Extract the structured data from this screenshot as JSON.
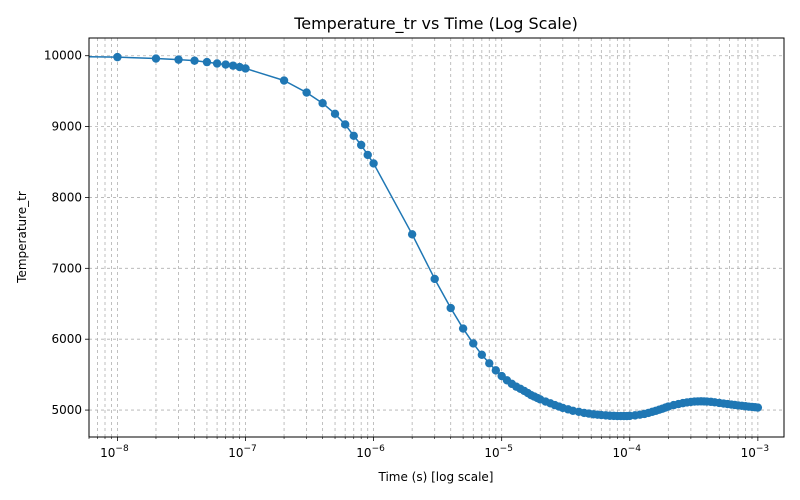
{
  "chart_data": {
    "type": "line",
    "title": "Temperature_tr vs Time (Log Scale)",
    "xlabel": "Time (s) [log scale]",
    "ylabel": "Temperature_tr",
    "x_scale": "log",
    "xlim": [
      6e-09,
      0.0016
    ],
    "ylim": [
      4620,
      10250
    ],
    "x_ticks": [
      {
        "value": 1e-08,
        "base": "10",
        "exp": "−8"
      },
      {
        "value": 1e-07,
        "base": "10",
        "exp": "−7"
      },
      {
        "value": 1e-06,
        "base": "10",
        "exp": "−6"
      },
      {
        "value": 1e-05,
        "base": "10",
        "exp": "−5"
      },
      {
        "value": 0.0001,
        "base": "10",
        "exp": "−4"
      },
      {
        "value": 0.001,
        "base": "10",
        "exp": "−3"
      }
    ],
    "y_ticks": [
      {
        "value": 5000,
        "label": "5000"
      },
      {
        "value": 6000,
        "label": "6000"
      },
      {
        "value": 7000,
        "label": "7000"
      },
      {
        "value": 8000,
        "label": "8000"
      },
      {
        "value": 9000,
        "label": "9000"
      },
      {
        "value": 10000,
        "label": "10000"
      }
    ],
    "grid": true,
    "grid_minor_x": true,
    "color": "#1f77b4",
    "line_start": {
      "x": 6e-09,
      "y": 9985
    },
    "series": [
      {
        "marker": "circle",
        "x": [
          1e-08,
          2e-08,
          3e-08,
          4e-08,
          5e-08,
          6e-08,
          7e-08,
          8e-08,
          9e-08,
          1e-07,
          2e-07,
          3e-07,
          4e-07,
          5e-07,
          6e-07,
          7e-07,
          8e-07,
          9e-07,
          1e-06,
          2e-06,
          3e-06,
          4e-06,
          5e-06,
          6e-06,
          7e-06,
          8e-06,
          9e-06,
          1e-05,
          1.1e-05,
          1.2e-05,
          1.3e-05,
          1.4e-05,
          1.5e-05,
          1.6e-05,
          1.7e-05,
          1.8e-05,
          1.9e-05,
          2e-05,
          2.2e-05,
          2.4e-05,
          2.6e-05,
          2.8e-05,
          3e-05,
          3.3e-05,
          3.6e-05,
          4e-05,
          4.4e-05,
          4.8e-05,
          5.2e-05,
          5.6e-05,
          6e-05,
          6.5e-05,
          7e-05,
          7.5e-05,
          8e-05,
          8.5e-05,
          9e-05,
          9.5e-05,
          0.0001,
          0.00011,
          0.00012,
          0.00013,
          0.00014,
          0.00015,
          0.00016,
          0.00017,
          0.00018,
          0.00019,
          0.0002,
          0.00022,
          0.00024,
          0.00026,
          0.00028,
          0.0003,
          0.00032,
          0.00034,
          0.00036,
          0.00038,
          0.0004,
          0.00043,
          0.00046,
          0.0005,
          0.00054,
          0.00058,
          0.00062,
          0.00066,
          0.0007,
          0.00075,
          0.0008,
          0.00085,
          0.0009,
          0.00095,
          0.001
        ],
        "y": [
          9980,
          9960,
          9945,
          9930,
          9910,
          9890,
          9875,
          9860,
          9840,
          9820,
          9650,
          9480,
          9330,
          9180,
          9030,
          8870,
          8740,
          8600,
          8480,
          7480,
          6850,
          6440,
          6150,
          5940,
          5780,
          5660,
          5560,
          5480,
          5420,
          5370,
          5330,
          5300,
          5270,
          5240,
          5210,
          5190,
          5170,
          5150,
          5120,
          5095,
          5070,
          5050,
          5030,
          5010,
          4990,
          4975,
          4960,
          4950,
          4940,
          4935,
          4930,
          4925,
          4920,
          4918,
          4916,
          4915,
          4915,
          4916,
          4918,
          4925,
          4935,
          4945,
          4960,
          4975,
          4990,
          5005,
          5020,
          5035,
          5050,
          5070,
          5085,
          5098,
          5108,
          5115,
          5120,
          5122,
          5123,
          5122,
          5120,
          5116,
          5110,
          5100,
          5092,
          5085,
          5078,
          5072,
          5066,
          5060,
          5054,
          5048,
          5044,
          5040,
          5035
        ]
      }
    ]
  }
}
